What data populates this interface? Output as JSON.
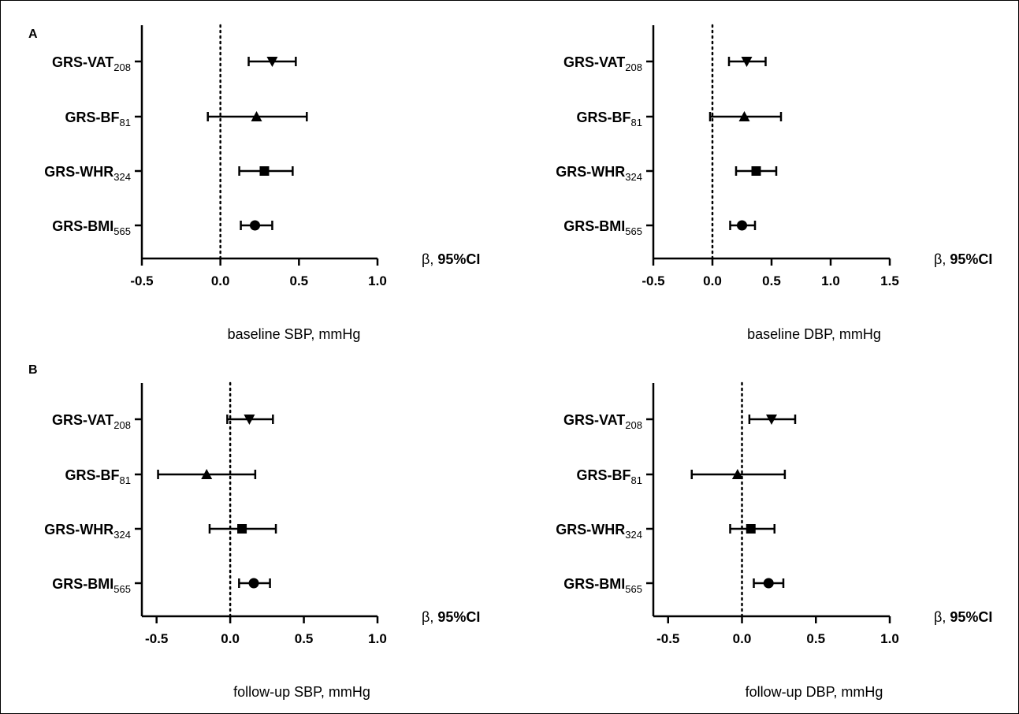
{
  "chart_data": [
    {
      "type": "scatter",
      "panel_label": "A",
      "xlabel": "baseline SBP, mmHg",
      "effect_label": {
        "main": "β, ",
        "bold": "95%CI"
      },
      "xticks": [
        "-0.5",
        "0.0",
        "0.5",
        "1.0"
      ],
      "xlim": [
        -0.5,
        1.0
      ],
      "reference_line": 0,
      "rows": [
        {
          "label": "GRS-VAT",
          "sub": "208",
          "marker": "triangle-down",
          "estimate": 0.33,
          "ci": [
            0.18,
            0.48
          ]
        },
        {
          "label": "GRS-BF",
          "sub": "81",
          "marker": "triangle-up",
          "estimate": 0.23,
          "ci": [
            -0.08,
            0.55
          ]
        },
        {
          "label": "GRS-WHR",
          "sub": "324",
          "marker": "square",
          "estimate": 0.28,
          "ci": [
            0.12,
            0.46
          ]
        },
        {
          "label": "GRS-BMI",
          "sub": "565",
          "marker": "circle",
          "estimate": 0.22,
          "ci": [
            0.13,
            0.33
          ]
        }
      ]
    },
    {
      "type": "scatter",
      "panel_label": "",
      "xlabel": "baseline DBP, mmHg",
      "effect_label": {
        "main": "β, ",
        "bold": "95%CI"
      },
      "xticks": [
        "-0.5",
        "0.0",
        "0.5",
        "1.0",
        "1.5"
      ],
      "xlim": [
        -0.5,
        1.5
      ],
      "reference_line": 0,
      "rows": [
        {
          "label": "GRS-VAT",
          "sub": "208",
          "marker": "triangle-down",
          "estimate": 0.29,
          "ci": [
            0.14,
            0.45
          ]
        },
        {
          "label": "GRS-BF",
          "sub": "81",
          "marker": "triangle-up",
          "estimate": 0.27,
          "ci": [
            -0.02,
            0.58
          ]
        },
        {
          "label": "GRS-WHR",
          "sub": "324",
          "marker": "square",
          "estimate": 0.37,
          "ci": [
            0.2,
            0.54
          ]
        },
        {
          "label": "GRS-BMI",
          "sub": "565",
          "marker": "circle",
          "estimate": 0.25,
          "ci": [
            0.15,
            0.36
          ]
        }
      ]
    },
    {
      "type": "scatter",
      "panel_label": "B",
      "xlabel": "follow-up SBP, mmHg",
      "effect_label": {
        "main": "β, ",
        "bold": "95%CI"
      },
      "xticks": [
        "-0.5",
        "0.0",
        "0.5",
        "1.0"
      ],
      "xlim": [
        -0.6,
        1.0
      ],
      "reference_line": 0,
      "rows": [
        {
          "label": "GRS-VAT",
          "sub": "208",
          "marker": "triangle-down",
          "estimate": 0.13,
          "ci": [
            -0.02,
            0.29
          ]
        },
        {
          "label": "GRS-BF",
          "sub": "81",
          "marker": "triangle-up",
          "estimate": -0.16,
          "ci": [
            -0.49,
            0.17
          ]
        },
        {
          "label": "GRS-WHR",
          "sub": "324",
          "marker": "square",
          "estimate": 0.08,
          "ci": [
            -0.14,
            0.31
          ]
        },
        {
          "label": "GRS-BMI",
          "sub": "565",
          "marker": "circle",
          "estimate": 0.16,
          "ci": [
            0.06,
            0.27
          ]
        }
      ]
    },
    {
      "type": "scatter",
      "panel_label": "",
      "xlabel": "follow-up DBP, mmHg",
      "effect_label": {
        "main": "β, ",
        "bold": "95%CI"
      },
      "xticks": [
        "-0.5",
        "0.0",
        "0.5",
        "1.0"
      ],
      "xlim": [
        -0.6,
        1.0
      ],
      "reference_line": 0,
      "rows": [
        {
          "label": "GRS-VAT",
          "sub": "208",
          "marker": "triangle-down",
          "estimate": 0.2,
          "ci": [
            0.05,
            0.36
          ]
        },
        {
          "label": "GRS-BF",
          "sub": "81",
          "marker": "triangle-up",
          "estimate": -0.03,
          "ci": [
            -0.34,
            0.29
          ]
        },
        {
          "label": "GRS-WHR",
          "sub": "324",
          "marker": "square",
          "estimate": 0.06,
          "ci": [
            -0.08,
            0.22
          ]
        },
        {
          "label": "GRS-BMI",
          "sub": "565",
          "marker": "circle",
          "estimate": 0.18,
          "ci": [
            0.08,
            0.28
          ]
        }
      ]
    }
  ]
}
